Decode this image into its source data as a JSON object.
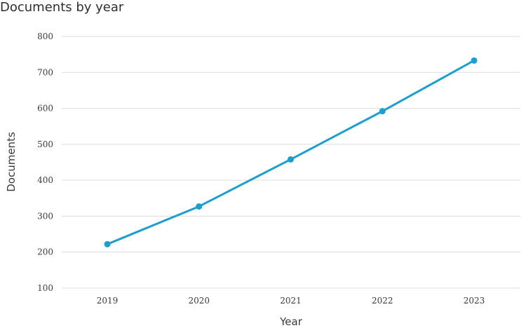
{
  "chart_data": {
    "type": "line",
    "title": "Documents by year",
    "xlabel": "Year",
    "ylabel": "Documents",
    "categories": [
      "2019",
      "2020",
      "2021",
      "2022",
      "2023"
    ],
    "series": [
      {
        "values": [
          222,
          327,
          458,
          592,
          733
        ]
      }
    ],
    "ylim": [
      100,
      800
    ],
    "yticks": [
      100,
      200,
      300,
      400,
      500,
      600,
      700,
      800
    ],
    "grid": true,
    "line_color": "#1a9fd0",
    "grid_color": "#dcdcdc"
  }
}
